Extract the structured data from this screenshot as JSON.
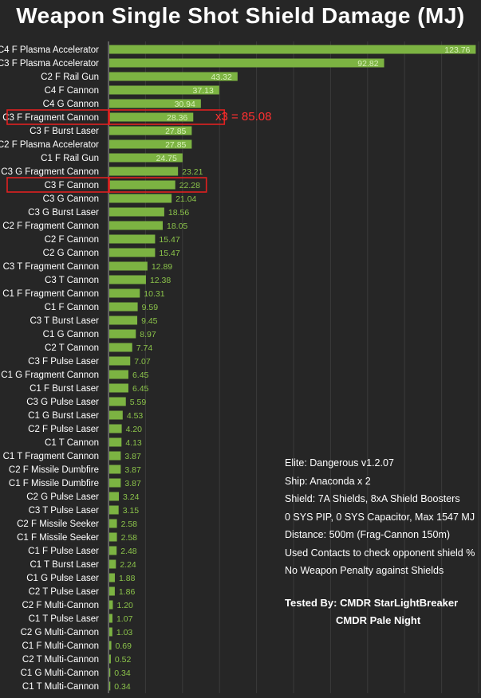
{
  "chart_data": {
    "type": "bar",
    "orientation": "horizontal",
    "title": "Weapon Single Shot Shield Damage (MJ)",
    "xlim": [
      0,
      125
    ],
    "grid": true,
    "bar_color": "#7cb342",
    "value_label_color": "#8bc34a",
    "categories": [
      "C4 F Plasma Accelerator",
      "C3 F Plasma Accelerator",
      "C2 F Rail Gun",
      "C4 F Cannon",
      "C4 G Cannon",
      "C3 F Fragment Cannon",
      "C3 F Burst Laser",
      "C2 F Plasma Accelerator",
      "C1 F Rail Gun",
      "C3 G Fragment Cannon",
      "C3 F Cannon",
      "C3 G Cannon",
      "C3 G Burst Laser",
      "C2 F Fragment Cannon",
      "C2 F Cannon",
      "C2 G Cannon",
      "C3 T Fragment Cannon",
      "C3 T Cannon",
      "C1 F Fragment Cannon",
      "C1 F Cannon",
      "C3 T Burst Laser",
      "C1 G Cannon",
      "C2 T Cannon",
      "C3 F Pulse Laser",
      "C1 G Fragment Cannon",
      "C1 F Burst Laser",
      "C3 G Pulse Laser",
      "C1 G Burst Laser",
      "C2 F Pulse Laser",
      "C1 T Cannon",
      "C1 T Fragment Cannon",
      "C2 F Missile Dumbfire",
      "C1 F Missile Dumbfire",
      "C2 G Pulse Laser",
      "C3 T Pulse Laser",
      "C2 F Missile Seeker",
      "C1 F Missile Seeker",
      "C1 F Pulse Laser",
      "C1 T Burst Laser",
      "C1 G Pulse Laser",
      "C2 T Pulse Laser",
      "C2 F Multi-Cannon",
      "C1 T Pulse Laser",
      "C2 G Multi-Cannon",
      "C1 F Multi-Cannon",
      "C2 T Multi-Cannon",
      "C1 G Multi-Cannon",
      "C1 T Multi-Cannon"
    ],
    "values": [
      123.76,
      92.82,
      43.32,
      37.13,
      30.94,
      28.36,
      27.85,
      27.85,
      24.75,
      23.21,
      22.28,
      21.04,
      18.56,
      18.05,
      15.47,
      15.47,
      12.89,
      12.38,
      10.31,
      9.59,
      9.45,
      8.97,
      7.74,
      7.07,
      6.45,
      6.45,
      5.59,
      4.53,
      4.2,
      4.13,
      3.87,
      3.87,
      3.87,
      3.24,
      3.15,
      2.58,
      2.58,
      2.48,
      2.24,
      1.88,
      1.86,
      1.2,
      1.07,
      1.03,
      0.69,
      0.52,
      0.34,
      0.34
    ],
    "value_labels": [
      "123.76",
      "92.82",
      "43.32",
      "37.13",
      "30.94",
      "28.36",
      "27.85",
      "27.85",
      "24.75",
      "23.21",
      "22.28",
      "21.04",
      "18.56",
      "18.05",
      "15.47",
      "15.47",
      "12.89",
      "12.38",
      "10.31",
      "9.59",
      "9.45",
      "8.97",
      "7.74",
      "7.07",
      "6.45",
      "6.45",
      "5.59",
      "4.53",
      "4.20",
      "4.13",
      "3.87",
      "3.87",
      "3.87",
      "3.24",
      "3.15",
      "2.58",
      "2.58",
      "2.48",
      "2.24",
      "1.88",
      "1.86",
      "1.20",
      "1.07",
      "1.03",
      "0.69",
      "0.52",
      "0.34",
      "0.34"
    ],
    "highlighted_categories": [
      "C3 F Fragment Cannon",
      "C3 F Cannon"
    ],
    "highlight_color": "#e02020",
    "annotation": "x3 = 85.08",
    "annotation_color": "#ff3030"
  },
  "notes": {
    "lines": [
      "Elite: Dangerous v1.2.07",
      "Ship: Anaconda x 2",
      "Shield: 7A Shields, 8xA Shield Boosters",
      "0 SYS PIP, 0 SYS Capacitor, Max 1547 MJ",
      "Distance: 500m (Frag-Cannon 150m)",
      "Used Contacts to check opponent shield %",
      "No Weapon Penalty against Shields"
    ],
    "tested_by_line1": "Tested By:  CMDR StarLightBreaker",
    "tested_by_line2": "CMDR Pale Night"
  }
}
